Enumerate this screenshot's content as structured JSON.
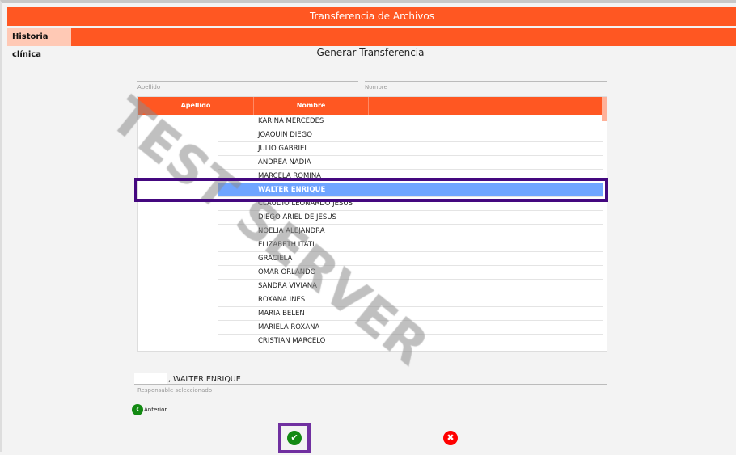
{
  "window_title": "Transferencia de Archivos",
  "tab": "Historia clínica",
  "heading": "Generar Transferencia",
  "filters": {
    "apellido_label": "Apellido",
    "nombre_label": "Nombre"
  },
  "grid": {
    "columns": [
      "Apellido",
      "Nombre"
    ],
    "rows": [
      "KARINA MERCEDES",
      "JOAQUIN DIEGO",
      "JULIO GABRIEL",
      "ANDREA NADIA",
      "MARCELA ROMINA",
      "WALTER ENRIQUE",
      "CLAUDIO LEONARDO JESUS",
      "DIEGO ARIEL DE JESUS",
      "NOELIA ALEJANDRA",
      "ELIZABETH ITATI",
      "GRACIELA",
      "OMAR ORLANDO",
      "SANDRA VIVIANA",
      "ROXANA INES",
      "MARIA BELEN",
      "MARIELA ROXANA",
      "CRISTIAN MARCELO"
    ],
    "selected_index": 5
  },
  "selected": {
    "value": ", WALTER ENRIQUE",
    "label": "Responsable seleccionado"
  },
  "back_label": "Anterior",
  "watermark": "TEST SERVER",
  "colors": {
    "accent": "#ff5722",
    "selection": "#6fa5ff",
    "focus": "#44087f"
  }
}
